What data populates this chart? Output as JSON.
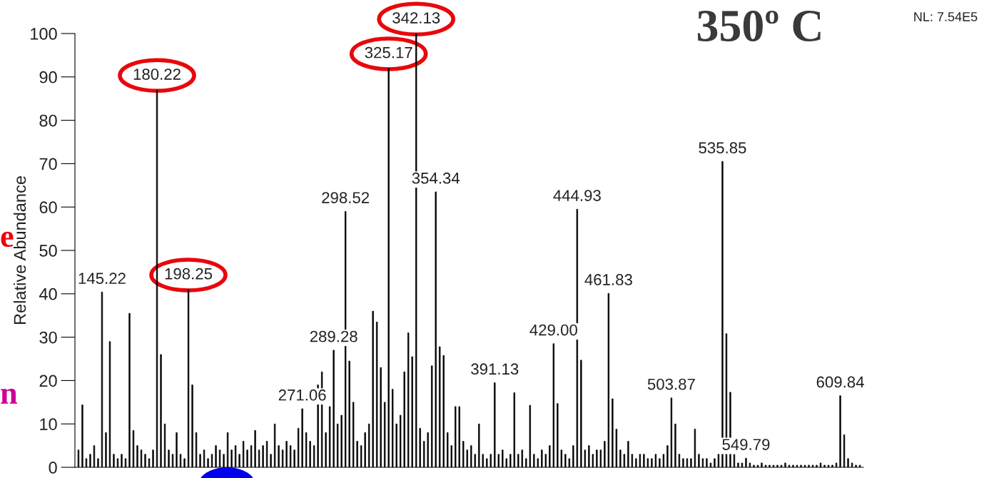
{
  "chart_data": {
    "type": "bar",
    "title": "350º C",
    "ylabel": "Relative Abundance",
    "color": "#000000",
    "categories": [
      null,
      null,
      null,
      null,
      null,
      null,
      null,
      null,
      null,
      null,
      null,
      null,
      null,
      null,
      null,
      null,
      null,
      null,
      null,
      null,
      null,
      null,
      null,
      null,
      null,
      null,
      null,
      null,
      null,
      null,
      null,
      null,
      null,
      null,
      null,
      null,
      null,
      null,
      null,
      null,
      null,
      null,
      null,
      null,
      null,
      null,
      null,
      null,
      null,
      null,
      null,
      null,
      null,
      null,
      null,
      null,
      null,
      null,
      null,
      null,
      null,
      null,
      null,
      null,
      null,
      null,
      null,
      null,
      null,
      null,
      null,
      null,
      null,
      null,
      null,
      null,
      null,
      null,
      null,
      null,
      null,
      null,
      null,
      null,
      null,
      null,
      null,
      null,
      null,
      null,
      null,
      null,
      null,
      null,
      null,
      null,
      null,
      null,
      null,
      null,
      null,
      null,
      null,
      null,
      null,
      null,
      null,
      null,
      null,
      null,
      null,
      null,
      null,
      null,
      null,
      null,
      null,
      null,
      null,
      null,
      null,
      null,
      null,
      null,
      null,
      null,
      null,
      null,
      null,
      null,
      null,
      null,
      null,
      null,
      null,
      null,
      null,
      null,
      null,
      null,
      null,
      null,
      null,
      null,
      null,
      null,
      null,
      null,
      null,
      null,
      null,
      null,
      null,
      null,
      null,
      null,
      null,
      null,
      null,
      null,
      null,
      null,
      null,
      null,
      null,
      null,
      null,
      null,
      null,
      null,
      null,
      null,
      null,
      null,
      null,
      null,
      null,
      null,
      null,
      null,
      null,
      null,
      null,
      null,
      null,
      null,
      null,
      null,
      null,
      null,
      null,
      null,
      null,
      null,
      null,
      null,
      null,
      null,
      null,
      null
    ],
    "values": [
      4,
      14.4,
      2,
      3,
      5,
      2,
      40.4,
      8,
      29,
      3,
      2,
      3,
      2,
      35.5,
      8.5,
      5,
      4,
      3,
      2,
      4,
      87,
      26,
      10,
      4,
      3,
      8,
      3,
      2,
      41,
      19,
      8,
      3,
      4,
      2,
      3,
      5,
      4,
      3,
      8,
      4,
      5,
      3,
      6,
      4,
      5,
      8.5,
      4,
      5,
      6,
      3,
      10,
      5,
      4,
      6,
      5,
      4,
      9,
      13.5,
      8,
      6,
      5,
      19,
      22,
      8,
      14,
      27,
      10,
      12,
      59,
      24.5,
      15,
      6,
      5,
      8,
      10,
      36,
      33.5,
      23,
      15,
      92,
      18,
      10,
      12,
      22,
      31,
      25.5,
      100,
      9,
      6,
      8,
      23.4,
      63.5,
      27.8,
      25.8,
      8,
      5,
      14,
      14,
      6,
      4,
      5,
      3,
      10,
      3,
      2,
      3,
      19.5,
      3,
      4,
      2,
      3,
      17.2,
      3,
      4,
      2,
      14.3,
      3,
      2,
      4,
      3,
      5,
      28.5,
      14.7,
      4,
      3,
      2,
      5,
      59.5,
      24.7,
      4,
      5,
      3,
      4,
      4,
      6,
      40.1,
      15.8,
      8.8,
      4,
      3,
      6,
      3,
      2,
      3,
      3,
      2,
      2,
      3,
      2,
      3,
      5,
      16,
      10,
      3,
      2,
      2,
      2,
      8.8,
      3,
      2,
      2,
      1,
      2,
      3,
      70.5,
      30.8,
      17.3,
      3,
      1,
      1,
      2.1,
      1,
      0.5,
      0.5,
      1,
      0.5,
      0.5,
      0.5,
      0.5,
      0.5,
      1,
      0.5,
      0.5,
      0.5,
      0.5,
      0.5,
      0.5,
      0.5,
      0.5,
      1,
      0.5,
      0.5,
      0.5,
      1,
      16.5,
      7.5,
      2,
      1,
      0.5,
      0.5
    ],
    "ylim": [
      0,
      100
    ],
    "yticks": [
      0,
      10,
      20,
      30,
      40,
      50,
      60,
      70,
      80,
      90,
      100
    ],
    "grid": false,
    "annotations": [
      {
        "text": "145.22",
        "y": 40.4
      },
      {
        "text": "180.22",
        "y": 87
      },
      {
        "text": "198.25",
        "y": 41
      },
      {
        "text": "271.06",
        "y": 13.5
      },
      {
        "text": "289.28",
        "y": 27
      },
      {
        "text": "298.52",
        "y": 59
      },
      {
        "text": "325.17",
        "y": 92
      },
      {
        "text": "342.13",
        "y": 100
      },
      {
        "text": "354.34",
        "y": 63.5
      },
      {
        "text": "391.13",
        "y": 19.5
      },
      {
        "text": "429.00",
        "y": 28.5
      },
      {
        "text": "444.93",
        "y": 59.5
      },
      {
        "text": "461.83",
        "y": 40.1
      },
      {
        "text": "503.87",
        "y": 16
      },
      {
        "text": "535.85",
        "y": 70.5
      },
      {
        "text": "549.79",
        "y": 2.1
      },
      {
        "text": "609.84",
        "y": 16.5
      },
      "NL: 7.54E5",
      "e",
      "n"
    ]
  }
}
